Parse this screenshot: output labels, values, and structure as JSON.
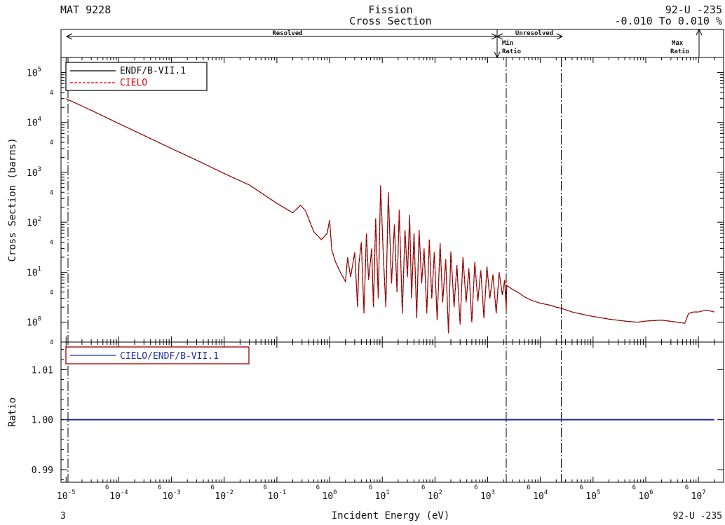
{
  "header": {
    "mat": "MAT 9228",
    "title_line1": "Fission",
    "title_line2": "Cross Section",
    "nuclide": "92-U -235",
    "ratio_range": "-0.010 To 0.010 %"
  },
  "regions": {
    "resolved": "Resolved",
    "unresolved": "Unresolved",
    "min_ratio_line1": "Min",
    "min_ratio_line2": "Ratio",
    "max_ratio_line1": "Max",
    "max_ratio_line2": "Ratio"
  },
  "footer": {
    "page_number": "3",
    "nuclide": "92-U -235"
  },
  "chart_data": [
    {
      "type": "line",
      "panel": "cross-section",
      "xlabel": "Incident Energy (eV)",
      "ylabel": "Cross Section (barns)",
      "x_scale": "log",
      "y_scale": "log",
      "xlim": [
        8e-06,
        30000000.0
      ],
      "ylim": [
        0.4,
        200000
      ],
      "grid": false,
      "legend_position": "top-left",
      "x_ticks": [
        {
          "base": "10",
          "exp": "-5"
        },
        {
          "base": "10",
          "exp": "-4"
        },
        {
          "base": "10",
          "exp": "-3"
        },
        {
          "base": "10",
          "exp": "-2"
        },
        {
          "base": "10",
          "exp": "-1"
        },
        {
          "base": "10",
          "exp": "0"
        },
        {
          "base": "10",
          "exp": "1"
        },
        {
          "base": "10",
          "exp": "2"
        },
        {
          "base": "10",
          "exp": "3"
        },
        {
          "base": "10",
          "exp": "4"
        },
        {
          "base": "10",
          "exp": "5"
        },
        {
          "base": "10",
          "exp": "6"
        },
        {
          "base": "10",
          "exp": "7"
        }
      ],
      "x_minor_label": "6",
      "y_ticks": [
        {
          "base": "10",
          "exp": "0"
        },
        {
          "base": "10",
          "exp": "1"
        },
        {
          "base": "10",
          "exp": "2"
        },
        {
          "base": "10",
          "exp": "3"
        },
        {
          "base": "10",
          "exp": "4"
        },
        {
          "base": "10",
          "exp": "5"
        }
      ],
      "y_minor_label": "4",
      "region_boundaries_eV": [
        2250,
        25000
      ],
      "series": [
        {
          "name": "ENDF/B-VII.1",
          "color": "#000000",
          "style": "solid",
          "x": [
            1e-05,
            3e-05,
            0.0001,
            0.0003,
            0.001,
            0.003,
            0.01,
            0.03,
            0.1,
            0.2,
            0.28,
            0.35,
            0.5,
            0.7,
            0.9,
            1.0,
            1.1,
            1.3,
            1.6,
            2.0,
            2.2,
            2.5,
            3.0,
            3.4,
            3.6,
            4.0,
            4.5,
            5.0,
            5.5,
            6.3,
            6.8,
            7.5,
            8.4,
            9.3,
            10.5,
            11.7,
            13,
            15,
            17,
            19,
            21,
            24,
            27,
            30,
            33,
            36,
            40,
            45,
            50,
            56,
            62,
            70,
            78,
            87,
            97,
            110,
            125,
            140,
            160,
            180,
            200,
            230,
            260,
            300,
            340,
            390,
            440,
            500,
            570,
            650,
            740,
            850,
            970,
            1100,
            1260,
            1450,
            1650,
            1900,
            2100,
            2250,
            2300,
            2600,
            3000,
            4000,
            5000,
            7000,
            10000,
            15000,
            20000,
            25000,
            40000,
            70000,
            100000,
            200000,
            400000,
            700000,
            1000000,
            2000000,
            4000000,
            5500000,
            6500000,
            8000000,
            10000000,
            14000000,
            20000000
          ],
          "y": [
            30000,
            17500,
            9500,
            5500,
            3000,
            1750,
            950,
            560,
            240,
            155,
            220,
            170,
            65,
            45,
            60,
            110,
            28,
            16,
            10,
            6.5,
            20,
            8,
            25,
            2,
            15,
            40,
            1.5,
            60,
            7,
            30,
            2,
            120,
            3,
            550,
            20,
            2,
            400,
            6,
            90,
            4,
            180,
            1.5,
            70,
            8,
            140,
            3,
            60,
            1.2,
            70,
            6,
            30,
            1.5,
            45,
            3,
            25,
            1.1,
            38,
            2.5,
            18,
            0.6,
            26,
            2,
            14,
            0.9,
            20,
            2.5,
            12,
            1,
            16,
            2.6,
            11,
            1.2,
            13,
            3,
            9,
            1.5,
            10,
            3.5,
            7,
            1.8,
            5.5,
            5,
            4.5,
            3.8,
            3.2,
            2.7,
            2.4,
            2.2,
            2.0,
            1.9,
            1.6,
            1.4,
            1.3,
            1.15,
            1.05,
            1.0,
            1.05,
            1.1,
            1.0,
            0.95,
            1.5,
            1.6,
            1.6,
            1.75,
            1.6
          ]
        },
        {
          "name": "CIELO",
          "color": "#dd0000",
          "style": "dashed",
          "x": [
            1e-05,
            3e-05,
            0.0001,
            0.0003,
            0.001,
            0.003,
            0.01,
            0.03,
            0.1,
            0.2,
            0.28,
            0.35,
            0.5,
            0.7,
            0.9,
            1.0,
            1.1,
            1.3,
            1.6,
            2.0,
            2.2,
            2.5,
            3.0,
            3.4,
            3.6,
            4.0,
            4.5,
            5.0,
            5.5,
            6.3,
            6.8,
            7.5,
            8.4,
            9.3,
            10.5,
            11.7,
            13,
            15,
            17,
            19,
            21,
            24,
            27,
            30,
            33,
            36,
            40,
            45,
            50,
            56,
            62,
            70,
            78,
            87,
            97,
            110,
            125,
            140,
            160,
            180,
            200,
            230,
            260,
            300,
            340,
            390,
            440,
            500,
            570,
            650,
            740,
            850,
            970,
            1100,
            1260,
            1450,
            1650,
            1900,
            2100,
            2250,
            2300,
            2600,
            3000,
            4000,
            5000,
            7000,
            10000,
            15000,
            20000,
            25000,
            40000,
            70000,
            100000,
            200000,
            400000,
            700000,
            1000000,
            2000000,
            4000000,
            5500000,
            6500000,
            8000000,
            10000000,
            14000000,
            20000000
          ],
          "y": [
            30000,
            17500,
            9500,
            5500,
            3000,
            1750,
            950,
            560,
            240,
            155,
            220,
            170,
            65,
            45,
            60,
            110,
            28,
            16,
            10,
            6.5,
            20,
            8,
            25,
            2,
            15,
            40,
            1.5,
            60,
            7,
            30,
            2,
            120,
            3,
            550,
            20,
            2,
            400,
            6,
            90,
            4,
            180,
            1.5,
            70,
            8,
            140,
            3,
            60,
            1.2,
            70,
            6,
            30,
            1.5,
            45,
            3,
            25,
            1.1,
            38,
            2.5,
            18,
            0.6,
            26,
            2,
            14,
            0.9,
            20,
            2.5,
            12,
            1,
            16,
            2.6,
            11,
            1.2,
            13,
            3,
            9,
            1.5,
            10,
            3.5,
            7,
            1.8,
            5.5,
            5,
            4.5,
            3.8,
            3.2,
            2.7,
            2.4,
            2.2,
            2.0,
            1.9,
            1.6,
            1.4,
            1.3,
            1.15,
            1.05,
            1.0,
            1.05,
            1.1,
            1.0,
            0.95,
            1.5,
            1.6,
            1.6,
            1.75,
            1.6
          ]
        }
      ]
    },
    {
      "type": "line",
      "panel": "ratio",
      "ylabel": "Ratio",
      "x_scale": "log",
      "xlim": [
        8e-06,
        30000000.0
      ],
      "ylim": [
        0.9875,
        1.0155
      ],
      "y_ticks": [
        "0.99",
        "1.00",
        "1.01"
      ],
      "legend_position": "top-left",
      "series": [
        {
          "name": "CIELO/ENDF/B-VII.1",
          "color": "#1e2fa0",
          "x": [
            1e-05,
            20000000
          ],
          "y": [
            1.0,
            1.0
          ]
        }
      ]
    }
  ]
}
